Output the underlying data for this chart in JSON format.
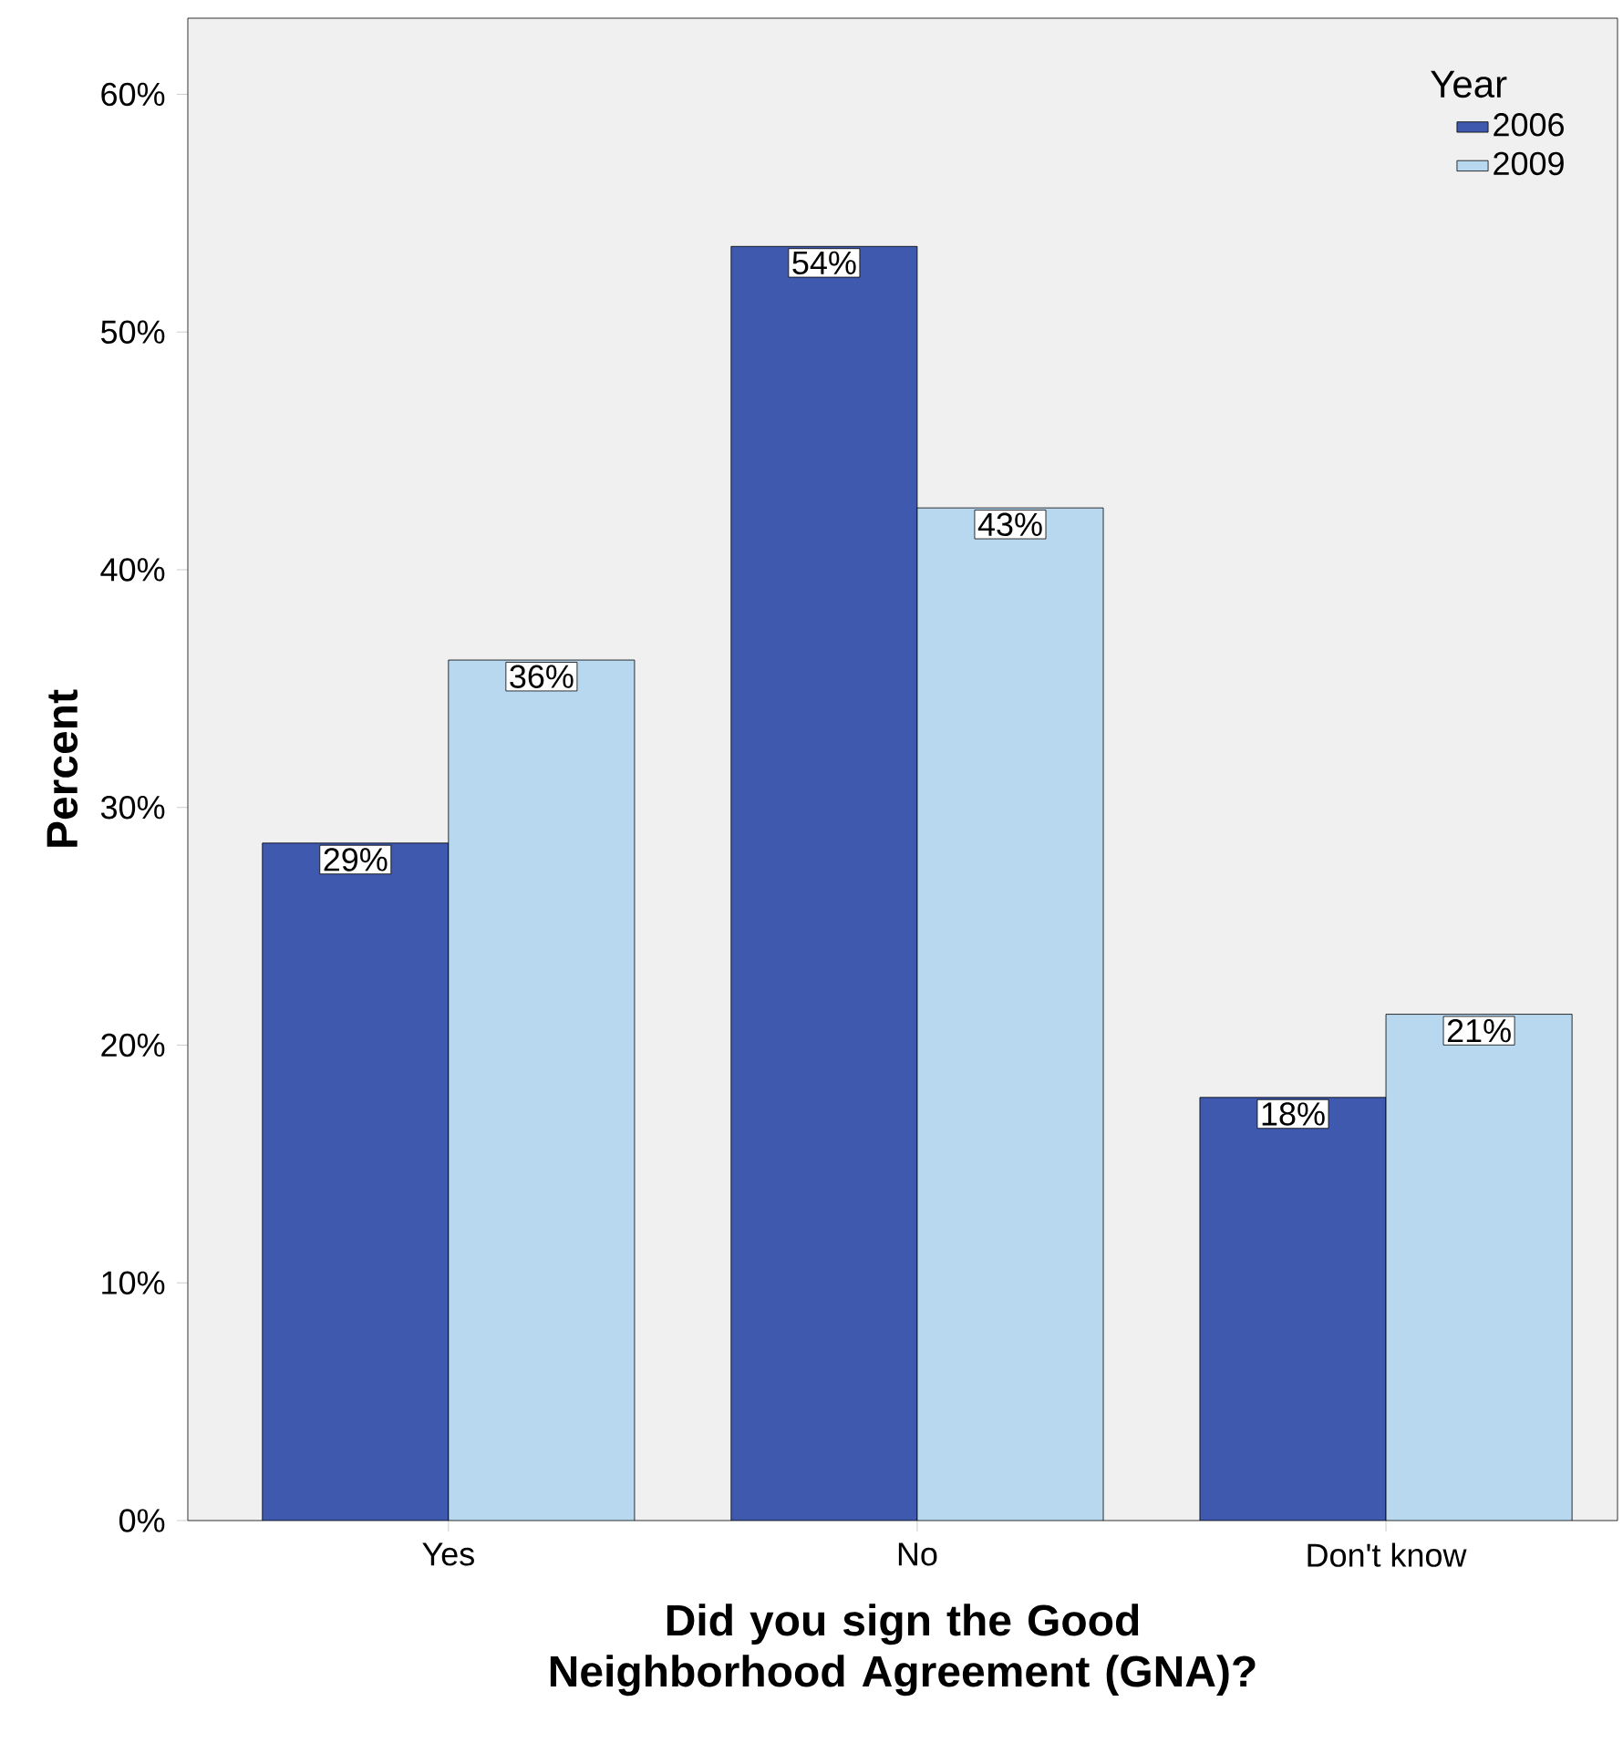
{
  "chart_data": {
    "type": "bar",
    "xlabel": "Did you sign the Good Neighborhood Agreement (GNA)?",
    "ylabel": "Percent",
    "legend_title": "Year",
    "categories": [
      "Yes",
      "No",
      "Don't know"
    ],
    "series": [
      {
        "name": "2006",
        "color": "#3f59ae",
        "values": [
          28.5,
          53.6,
          17.8
        ],
        "value_labels": [
          "29%",
          "54%",
          "18%"
        ]
      },
      {
        "name": "2009",
        "color": "#b8d8f0",
        "values": [
          36.2,
          42.6,
          21.3
        ],
        "value_labels": [
          "36%",
          "43%",
          "21%"
        ]
      }
    ],
    "ylim": [
      0,
      63.2
    ],
    "yticks": [
      {
        "value": 0,
        "label": "0%"
      },
      {
        "value": 10,
        "label": "10%"
      },
      {
        "value": 20,
        "label": "20%"
      },
      {
        "value": 30,
        "label": "30%"
      },
      {
        "value": 40,
        "label": "40%"
      },
      {
        "value": 50,
        "label": "50%"
      },
      {
        "value": 60,
        "label": "60%"
      }
    ],
    "legend": "top right",
    "grid": false
  }
}
